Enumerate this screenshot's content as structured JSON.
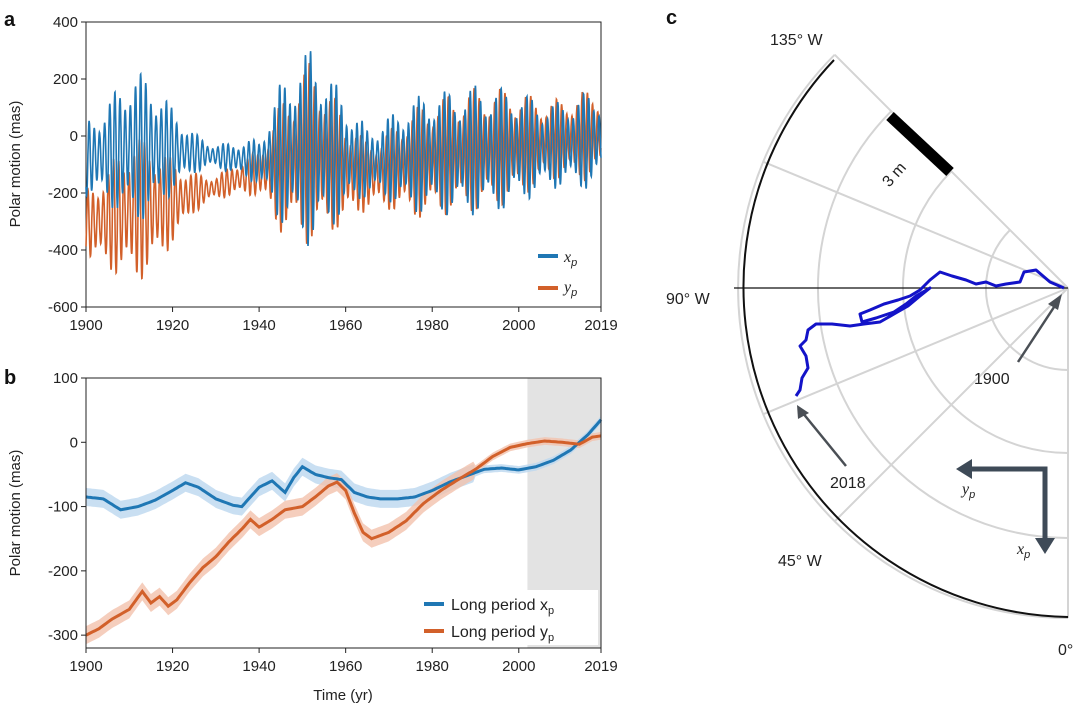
{
  "chart_data": [
    {
      "panel": "a",
      "type": "line",
      "xlabel": "",
      "ylabel": "Polar motion (mas)",
      "xlim": [
        1900,
        2019
      ],
      "ylim": [
        -600,
        400
      ],
      "xticks": [
        "1900",
        "1920",
        "1940",
        "1960",
        "1980",
        "2000",
        "2019"
      ],
      "yticks": [
        "400",
        "200",
        "0",
        "-200",
        "-400",
        "-600"
      ],
      "legend_position": "bottom-right",
      "series": [
        {
          "name": "x",
          "subscript": "p",
          "color": "#1f77b4",
          "envelope_x": [
            1900,
            1905,
            1910,
            1915,
            1920,
            1925,
            1930,
            1935,
            1940,
            1945,
            1950,
            1952,
            1955,
            1960,
            1965,
            1970,
            1975,
            1980,
            1985,
            1990,
            1995,
            2000,
            2005,
            2010,
            2015,
            2019
          ],
          "center": [
            -80,
            -60,
            -40,
            -40,
            -50,
            -60,
            -70,
            -80,
            -90,
            -60,
            -40,
            -40,
            -50,
            -70,
            -90,
            -80,
            -70,
            -60,
            -60,
            -50,
            -50,
            -40,
            -40,
            -30,
            -20,
            -10
          ],
          "amplitude": [
            130,
            180,
            270,
            250,
            150,
            70,
            40,
            60,
            80,
            250,
            320,
            360,
            300,
            200,
            120,
            150,
            200,
            220,
            220,
            230,
            220,
            200,
            160,
            150,
            170,
            160
          ]
        },
        {
          "name": "y",
          "subscript": "p",
          "color": "#d2602a",
          "envelope_x": [
            1900,
            1905,
            1910,
            1915,
            1920,
            1925,
            1930,
            1935,
            1940,
            1945,
            1950,
            1952,
            1955,
            1960,
            1965,
            1970,
            1975,
            1980,
            1985,
            1990,
            1995,
            2000,
            2005,
            2010,
            2015,
            2019
          ],
          "center": [
            -310,
            -290,
            -260,
            -250,
            -230,
            -200,
            -180,
            -150,
            -130,
            -110,
            -70,
            -60,
            -80,
            -120,
            -140,
            -120,
            -100,
            -80,
            -60,
            -50,
            -40,
            -30,
            -20,
            -10,
            0,
            10
          ],
          "amplitude": [
            120,
            180,
            260,
            240,
            150,
            70,
            40,
            60,
            80,
            230,
            300,
            330,
            280,
            190,
            120,
            140,
            190,
            210,
            210,
            220,
            210,
            190,
            150,
            140,
            160,
            150
          ]
        }
      ]
    },
    {
      "panel": "b",
      "type": "line",
      "xlabel": "Time (yr)",
      "ylabel": "Polar motion (mas)",
      "xlim": [
        1900,
        2019
      ],
      "ylim": [
        -320,
        100
      ],
      "xticks": [
        "1900",
        "1920",
        "1940",
        "1960",
        "1980",
        "2000",
        "2019"
      ],
      "yticks": [
        "100",
        "0",
        "-100",
        "-200",
        "-300"
      ],
      "shaded_region": [
        2002,
        2019
      ],
      "legend_position": "bottom-right",
      "series": [
        {
          "name": "Long period x",
          "subscript": "p",
          "color": "#1f77b4",
          "x": [
            1900,
            1904,
            1908,
            1912,
            1916,
            1920,
            1923,
            1926,
            1930,
            1934,
            1936,
            1938,
            1940,
            1943,
            1946,
            1948,
            1950,
            1953,
            1956,
            1959,
            1962,
            1965,
            1968,
            1972,
            1976,
            1980,
            1984,
            1988,
            1992,
            1996,
            2000,
            2004,
            2008,
            2012,
            2016,
            2019
          ],
          "y": [
            -85,
            -88,
            -105,
            -100,
            -90,
            -75,
            -63,
            -70,
            -88,
            -98,
            -100,
            -85,
            -70,
            -60,
            -78,
            -55,
            -38,
            -50,
            -55,
            -58,
            -78,
            -85,
            -88,
            -88,
            -85,
            -75,
            -62,
            -52,
            -42,
            -40,
            -43,
            -38,
            -28,
            -12,
            12,
            35
          ]
        },
        {
          "name": "Long period y",
          "subscript": "p",
          "color": "#d2602a",
          "x": [
            1900,
            1903,
            1906,
            1910,
            1913,
            1915,
            1917,
            1919,
            1921,
            1924,
            1927,
            1930,
            1933,
            1936,
            1938,
            1940,
            1943,
            1946,
            1950,
            1953,
            1956,
            1958,
            1960,
            1962,
            1964,
            1966,
            1970,
            1974,
            1978,
            1982,
            1986,
            1990,
            1994,
            1998,
            2002,
            2006,
            2010,
            2014,
            2017,
            2019
          ],
          "y": [
            -300,
            -290,
            -275,
            -260,
            -232,
            -250,
            -240,
            -255,
            -245,
            -218,
            -195,
            -178,
            -155,
            -135,
            -120,
            -132,
            -120,
            -105,
            -100,
            -85,
            -68,
            -62,
            -75,
            -110,
            -140,
            -150,
            -140,
            -122,
            -95,
            -75,
            -58,
            -42,
            -22,
            -8,
            -2,
            2,
            0,
            -3,
            8,
            10
          ]
        }
      ]
    },
    {
      "panel": "c",
      "type": "polar",
      "angle_labels": [
        "135° W",
        "90° W",
        "45° W",
        "0°"
      ],
      "scale_label": "3 m",
      "annotations": [
        "1900",
        "2018"
      ],
      "axis_labels": [
        "y",
        "x"
      ],
      "axis_subscript": "p",
      "path_color": "#1313c8"
    }
  ]
}
